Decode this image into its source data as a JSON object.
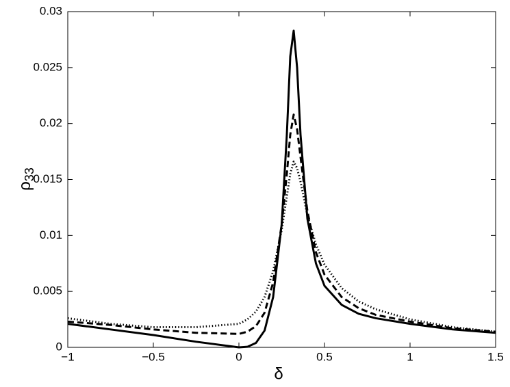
{
  "chart_data": {
    "type": "line",
    "xlabel": "δ",
    "ylabel": {
      "symbol": "ρ",
      "subscript": "33"
    },
    "x": [
      -1,
      -0.75,
      -0.5,
      -0.25,
      0,
      0.05,
      0.1,
      0.15,
      0.2,
      0.25,
      0.28,
      0.3,
      0.32,
      0.34,
      0.36,
      0.4,
      0.45,
      0.5,
      0.6,
      0.7,
      0.8,
      1,
      1.25,
      1.5
    ],
    "series": [
      {
        "color": "#000000",
        "style": "solid",
        "values": [
          0.0021,
          0.0016,
          0.0011,
          0.0005,
          0.0,
          5e-05,
          0.0004,
          0.0015,
          0.0045,
          0.011,
          0.019,
          0.026,
          0.0283,
          0.025,
          0.019,
          0.0115,
          0.0075,
          0.0055,
          0.0038,
          0.003,
          0.0026,
          0.0021,
          0.0016,
          0.0013
        ]
      },
      {
        "color": "#000000",
        "style": "dashed",
        "values": [
          0.0023,
          0.002,
          0.0016,
          0.0013,
          0.0012,
          0.0014,
          0.0019,
          0.0031,
          0.0058,
          0.011,
          0.0155,
          0.019,
          0.0208,
          0.0195,
          0.017,
          0.0122,
          0.0085,
          0.0065,
          0.0045,
          0.0035,
          0.0029,
          0.0023,
          0.0017,
          0.0014
        ]
      },
      {
        "color": "#000000",
        "style": "dotted",
        "values": [
          0.0026,
          0.0021,
          0.0018,
          0.0018,
          0.0021,
          0.0025,
          0.0032,
          0.0045,
          0.0068,
          0.0105,
          0.0135,
          0.0155,
          0.0166,
          0.016,
          0.0148,
          0.0118,
          0.0092,
          0.0074,
          0.0053,
          0.0041,
          0.0034,
          0.0025,
          0.0018,
          0.0014
        ]
      }
    ],
    "xlim": [
      -1,
      1.5
    ],
    "xticks": [
      {
        "value": -1,
        "label": "−1"
      },
      {
        "value": -0.5,
        "label": "−0.5"
      },
      0,
      0.5,
      1,
      1.5
    ],
    "ylim": [
      0,
      0.03
    ],
    "yticks": [
      0,
      0.005,
      0.01,
      0.015,
      0.02,
      0.025,
      0.03
    ],
    "grid": false
  }
}
